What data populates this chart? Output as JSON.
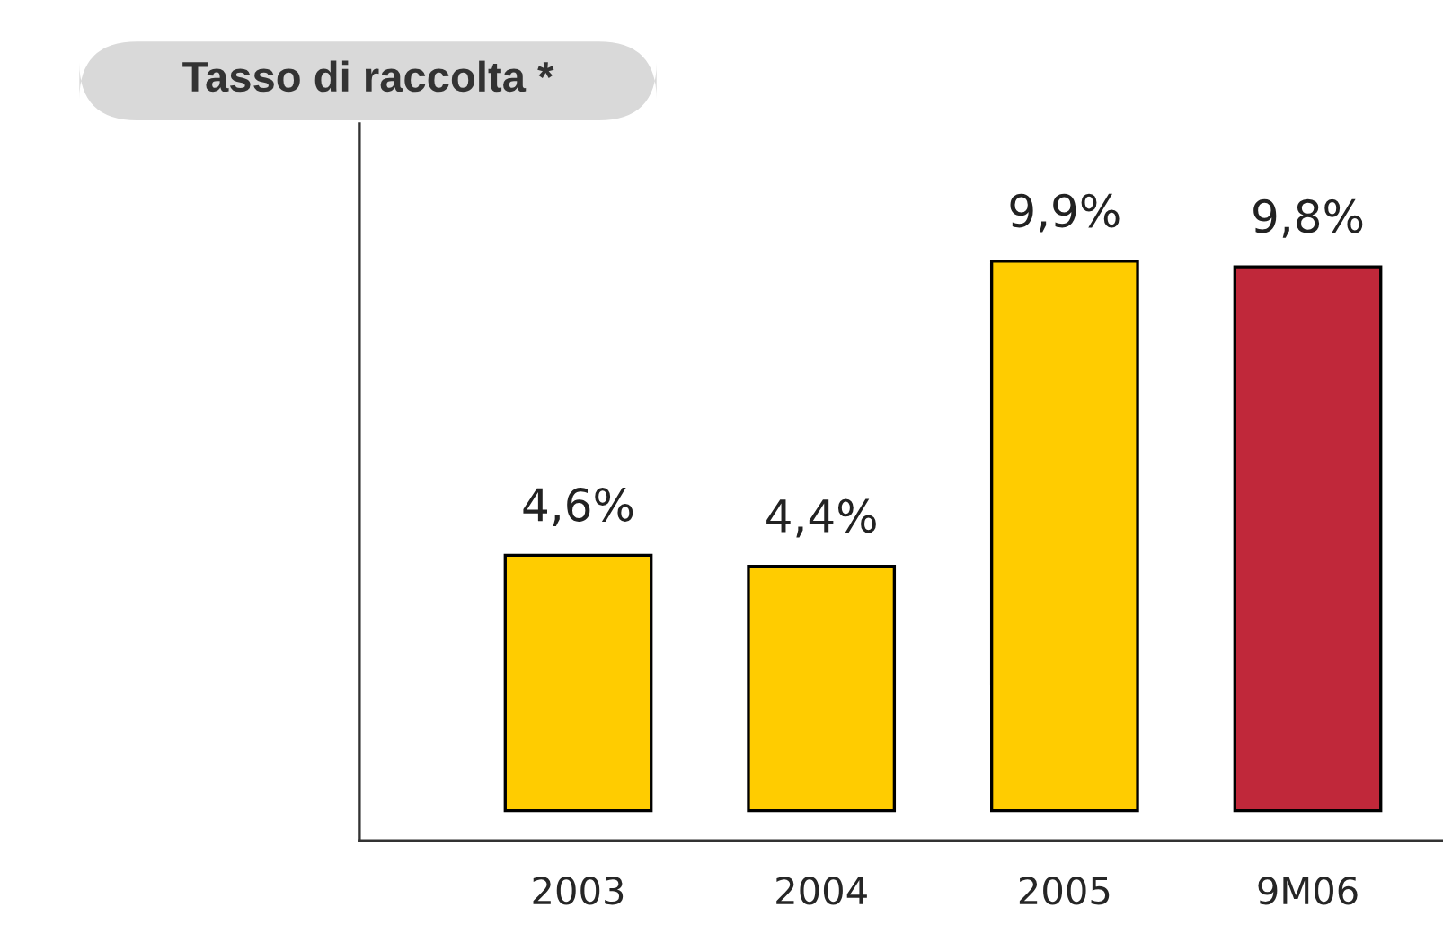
{
  "chart_data": {
    "type": "bar",
    "title": "Tasso di raccolta *",
    "categories": [
      "2003",
      "2004",
      "2005",
      "9M06"
    ],
    "values": [
      4.6,
      4.4,
      9.9,
      9.8
    ],
    "colors": [
      "#ffcc00",
      "#ffcc00",
      "#ffcc00",
      "#c0283a"
    ],
    "value_labels": [
      "4,6%",
      "4,4%",
      "9,9%",
      "9,8%"
    ],
    "grid": false,
    "legend": false
  }
}
